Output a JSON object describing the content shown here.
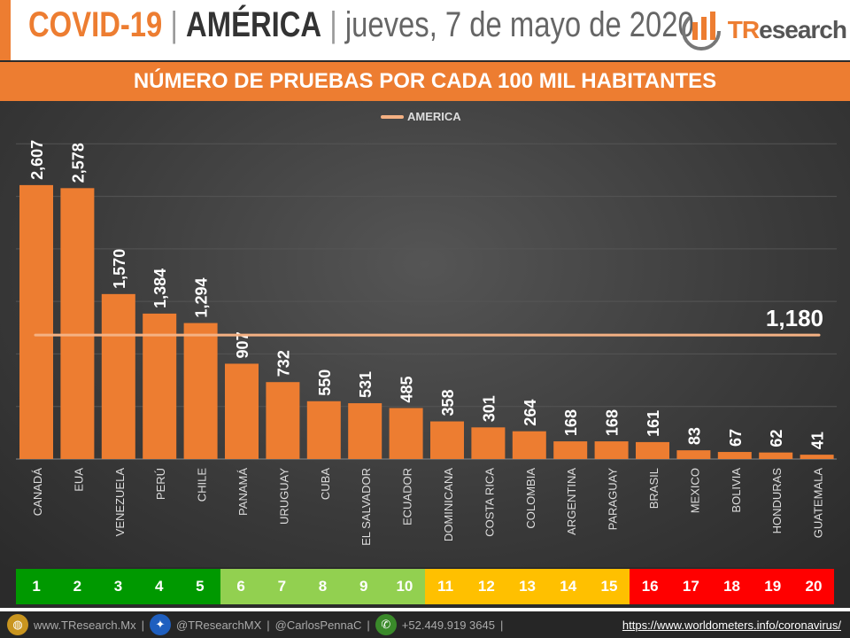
{
  "header": {
    "covid": "COVID-19",
    "region": "AMÉRICA",
    "date": "jueves, 7 de mayo de 2020",
    "separator": "|",
    "logo_t": "TR",
    "logo_rest": "esearch"
  },
  "subtitle": "NÚMERO DE PRUEBAS POR CADA 100 MIL HABITANTES",
  "chart_data": {
    "type": "bar",
    "title": "NÚMERO DE PRUEBAS POR CADA 100 MIL HABITANTES",
    "categories": [
      "CANADÁ",
      "EUA",
      "VENEZUELA",
      "PERÚ",
      "CHILE",
      "PANAMÁ",
      "URUGUAY",
      "CUBA",
      "EL SALVADOR",
      "ECUADOR",
      "DOMINICANA",
      "COSTA RICA",
      "COLOMBIA",
      "ARGENTINA",
      "PARAGUAY",
      "BRASIL",
      "MEXICO",
      "BOLIVIA",
      "HONDURAS",
      "GUATEMALA"
    ],
    "values": [
      2607,
      2578,
      1570,
      1384,
      1294,
      907,
      732,
      550,
      531,
      485,
      358,
      301,
      264,
      168,
      168,
      161,
      83,
      67,
      62,
      41
    ],
    "value_labels": [
      "2,607",
      "2,578",
      "1,570",
      "1,384",
      "1,294",
      "907",
      "732",
      "550",
      "531",
      "485",
      "358",
      "301",
      "264",
      "168",
      "168",
      "161",
      "83",
      "67",
      "62",
      "41"
    ],
    "reference_line": {
      "name": "AMERICA",
      "value": 1180,
      "label": "1,180",
      "color": "#f4b183"
    },
    "ylim": [
      0,
      3500
    ],
    "grid": true,
    "legend": "top-center",
    "bar_color": "#ed7d31"
  },
  "ranks": {
    "labels": [
      "1",
      "2",
      "3",
      "4",
      "5",
      "6",
      "7",
      "8",
      "9",
      "10",
      "11",
      "12",
      "13",
      "14",
      "15",
      "16",
      "17",
      "18",
      "19",
      "20"
    ],
    "colors": [
      "#009900",
      "#009900",
      "#009900",
      "#009900",
      "#009900",
      "#92d050",
      "#92d050",
      "#92d050",
      "#92d050",
      "#92d050",
      "#ffc000",
      "#ffc000",
      "#ffc000",
      "#ffc000",
      "#ffc000",
      "#ff0000",
      "#ff0000",
      "#ff0000",
      "#ff0000",
      "#ff0000"
    ]
  },
  "footer": {
    "web": "www.TResearch.Mx",
    "twitter": "@TResearchMX",
    "twitter2": "@CarlosPennaC",
    "phone": "+52.449.919 3645",
    "sep": "|",
    "source": "https://www.worldometers.info/coronavirus/"
  }
}
